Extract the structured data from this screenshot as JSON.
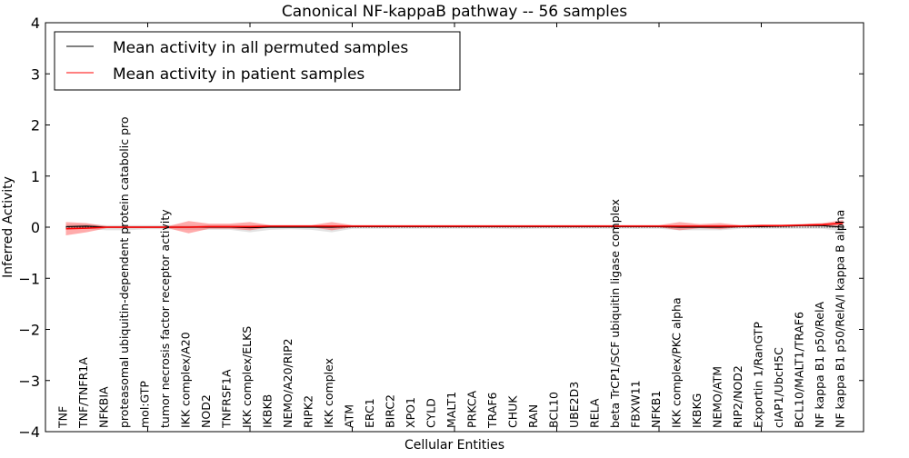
{
  "chart_data": {
    "type": "line",
    "title": "Canonical NF-kappaB pathway -- 56 samples",
    "xlabel": "Cellular Entities",
    "ylabel": "Inferred Activity",
    "ylim": [
      -4,
      4
    ],
    "yticks": [
      "4",
      "3",
      "2",
      "1",
      "0",
      "−1",
      "−2",
      "−3",
      "−4"
    ],
    "ytick_values": [
      4,
      3,
      2,
      1,
      0,
      -1,
      -2,
      -3,
      -4
    ],
    "legend_position": "top-left",
    "grid": false,
    "categories": [
      "TNF",
      "TNF/TNFR1A",
      "NFKBIA",
      "proteasomal ubiquitin-dependent protein catabolic pro",
      "mol:GTP",
      "tumor necrosis factor receptor activity",
      "IKK complex/A20",
      "NOD2",
      "TNFRSF1A",
      "IKK complex/ELKS",
      "IKBKB",
      "NEMO/A20/RIP2",
      "RIPK2",
      "IKK complex",
      "ATM",
      "ERC1",
      "BIRC2",
      "XPO1",
      "CYLD",
      "MALT1",
      "PRKCA",
      "TRAF6",
      "CHUK",
      "RAN",
      "BCL10",
      "UBE2D3",
      "RELA",
      "beta TrCP1/SCF ubiquitin ligase complex",
      "FBXW11",
      "NFKB1",
      "IKK complex/PKC alpha",
      "IKBKG",
      "NEMO/ATM",
      "RIP2/NOD2",
      "Exportin 1/RanGTP",
      "cIAP1/UbcH5C",
      "BCL10/MALT1/TRAF6",
      "NF kappa B1 p50/RelA",
      "NF kappa B1 p50/RelA/I kappa B alpha"
    ],
    "series": [
      {
        "name": "Mean activity in all permuted samples",
        "color": "#000000",
        "values": [
          0.01,
          0.02,
          0,
          0,
          0,
          0,
          0,
          0,
          0,
          -0.01,
          0,
          0,
          0,
          0,
          0.01,
          0.01,
          0.01,
          0.01,
          0.01,
          0.01,
          0.01,
          0.01,
          0.01,
          0.01,
          0.01,
          0.01,
          0.01,
          0.01,
          0.01,
          0.01,
          0,
          0,
          0,
          0.01,
          0.01,
          0.02,
          0.03,
          0.03,
          0
        ],
        "band_low": [
          -0.04,
          -0.03,
          -0.06,
          -0.06,
          -0.04,
          -0.04,
          -0.05,
          -0.05,
          -0.05,
          -0.1,
          -0.05,
          -0.04,
          -0.05,
          -0.1,
          -0.03,
          -0.03,
          -0.03,
          -0.03,
          -0.03,
          -0.03,
          -0.03,
          -0.03,
          -0.04,
          -0.03,
          -0.03,
          -0.03,
          -0.03,
          -0.03,
          -0.03,
          -0.03,
          -0.06,
          -0.06,
          -0.06,
          -0.03,
          -0.03,
          -0.03,
          -0.03,
          -0.03,
          -0.08
        ],
        "band_high": [
          0.05,
          0.06,
          0.04,
          0.04,
          0.04,
          0.04,
          0.04,
          0.04,
          0.04,
          0.04,
          0.04,
          0.04,
          0.04,
          0.04,
          0.04,
          0.04,
          0.04,
          0.04,
          0.04,
          0.04,
          0.04,
          0.04,
          0.04,
          0.04,
          0.04,
          0.04,
          0.04,
          0.04,
          0.04,
          0.04,
          0.04,
          0.04,
          0.04,
          0.04,
          0.04,
          0.05,
          0.06,
          0.06,
          0.04
        ]
      },
      {
        "name": "Mean activity in patient samples",
        "color": "#ff0000",
        "values": [
          -0.03,
          -0.02,
          0,
          0,
          0,
          0,
          0,
          0.01,
          0.01,
          0.01,
          0.02,
          0.02,
          0.02,
          0.02,
          0.02,
          0.02,
          0.02,
          0.02,
          0.02,
          0.02,
          0.02,
          0.02,
          0.02,
          0.02,
          0.02,
          0.02,
          0.02,
          0.02,
          0.02,
          0.02,
          0.02,
          0.02,
          0.02,
          0.02,
          0.03,
          0.03,
          0.04,
          0.05,
          0.08
        ],
        "band_low": [
          -0.16,
          -0.1,
          -0.02,
          -0.02,
          -0.02,
          -0.02,
          -0.12,
          -0.03,
          -0.03,
          -0.06,
          0,
          0,
          0,
          -0.06,
          0,
          0,
          0,
          0,
          0,
          0,
          0,
          0,
          0,
          0,
          0,
          0,
          0,
          0,
          0,
          0,
          -0.06,
          -0.02,
          -0.04,
          0,
          0.01,
          0.01,
          0.02,
          0.02,
          0.03
        ],
        "band_high": [
          0.1,
          0.08,
          0.02,
          0.02,
          0.02,
          0.02,
          0.12,
          0.07,
          0.07,
          0.1,
          0.04,
          0.04,
          0.04,
          0.1,
          0.04,
          0.04,
          0.04,
          0.04,
          0.04,
          0.04,
          0.04,
          0.04,
          0.04,
          0.04,
          0.04,
          0.04,
          0.04,
          0.04,
          0.04,
          0.04,
          0.1,
          0.06,
          0.08,
          0.04,
          0.05,
          0.05,
          0.06,
          0.08,
          0.14
        ]
      }
    ]
  }
}
